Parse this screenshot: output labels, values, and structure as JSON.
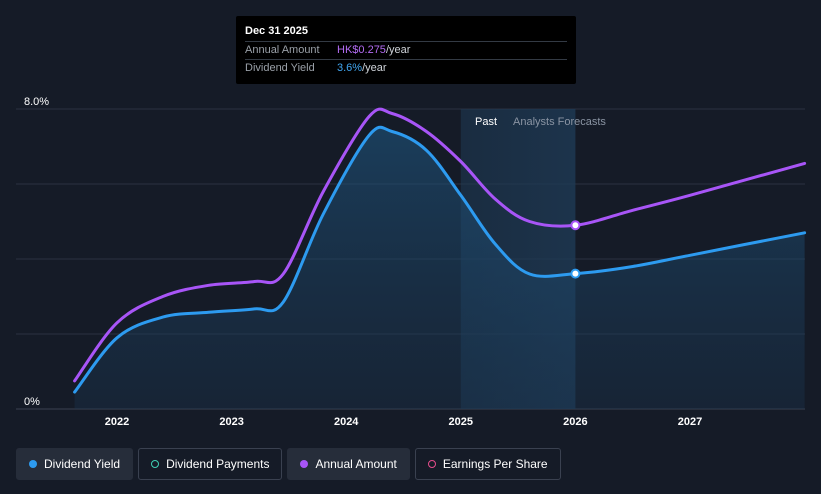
{
  "tooltip": {
    "date": "Dec 31 2025",
    "rows": [
      {
        "label": "Annual Amount",
        "value": "HK$0.275",
        "unit": "/year"
      },
      {
        "label": "Dividend Yield",
        "value": "3.6%",
        "unit": "/year"
      }
    ]
  },
  "regions": {
    "past": "Past",
    "forecast": "Analysts Forecasts"
  },
  "legend": [
    {
      "label": "Dividend Yield",
      "color": "#2d9bf0",
      "filled": true
    },
    {
      "label": "Dividend Payments",
      "color": "#3fd1b5",
      "filled": false
    },
    {
      "label": "Annual Amount",
      "color": "#a855f7",
      "filled": true
    },
    {
      "label": "Earnings Per Share",
      "color": "#e64d8c",
      "filled": false
    }
  ],
  "chart_data": {
    "type": "line",
    "ylim": [
      0,
      8
    ],
    "xlim": [
      2021.6,
      2028.0
    ],
    "y_ticks": [
      {
        "value": 8,
        "label": "8.0%"
      },
      {
        "value": 0,
        "label": "0%"
      }
    ],
    "x_ticks": [
      {
        "value": 2022,
        "label": "2022"
      },
      {
        "value": 2023,
        "label": "2023"
      },
      {
        "value": 2024,
        "label": "2024"
      },
      {
        "value": 2025,
        "label": "2025"
      },
      {
        "value": 2026,
        "label": "2026"
      },
      {
        "value": 2027,
        "label": "2027"
      }
    ],
    "grid_lines": [
      8,
      6,
      4,
      2,
      0
    ],
    "past_end": 2025.4,
    "forecast_band": [
      2025.0,
      2026.0
    ],
    "series": [
      {
        "name": "Dividend Yield",
        "color": "#2d9bf0",
        "fill": true,
        "points": [
          [
            2021.63,
            0.45
          ],
          [
            2022.0,
            1.9
          ],
          [
            2022.4,
            2.45
          ],
          [
            2022.8,
            2.58
          ],
          [
            2023.2,
            2.67
          ],
          [
            2023.45,
            2.85
          ],
          [
            2023.8,
            5.2
          ],
          [
            2024.2,
            7.3
          ],
          [
            2024.4,
            7.4
          ],
          [
            2024.7,
            6.9
          ],
          [
            2025.0,
            5.7
          ],
          [
            2025.3,
            4.4
          ],
          [
            2025.6,
            3.6
          ],
          [
            2026.0,
            3.61
          ],
          [
            2026.5,
            3.8
          ],
          [
            2027.0,
            4.1
          ],
          [
            2028.0,
            4.7
          ]
        ]
      },
      {
        "name": "Annual Amount",
        "color": "#a855f7",
        "fill": false,
        "points": [
          [
            2021.63,
            0.75
          ],
          [
            2022.0,
            2.3
          ],
          [
            2022.4,
            3.0
          ],
          [
            2022.8,
            3.3
          ],
          [
            2023.2,
            3.4
          ],
          [
            2023.45,
            3.6
          ],
          [
            2023.8,
            5.8
          ],
          [
            2024.2,
            7.8
          ],
          [
            2024.4,
            7.88
          ],
          [
            2024.7,
            7.4
          ],
          [
            2025.0,
            6.6
          ],
          [
            2025.3,
            5.6
          ],
          [
            2025.6,
            5.0
          ],
          [
            2026.0,
            4.9
          ],
          [
            2026.5,
            5.3
          ],
          [
            2027.0,
            5.7
          ],
          [
            2028.0,
            6.55
          ]
        ]
      }
    ],
    "markers": [
      {
        "series": "Annual Amount",
        "x": 2026.0,
        "y": 4.9
      },
      {
        "series": "Dividend Yield",
        "x": 2026.0,
        "y": 3.61
      }
    ]
  }
}
